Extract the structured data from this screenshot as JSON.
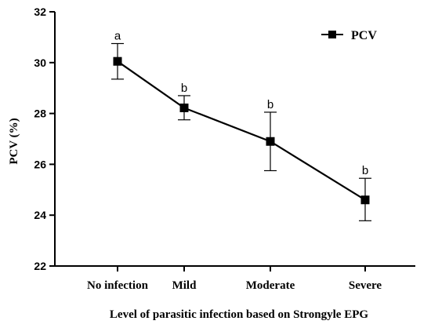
{
  "chart_data": {
    "type": "line",
    "xlabel": "Level of parasitic infection based on Strongyle EPG",
    "ylabel": "PCV (%)",
    "ylim": [
      22,
      32
    ],
    "yticks": [
      22,
      24,
      26,
      28,
      30,
      32
    ],
    "categories": [
      "No infection",
      "Mild",
      "Moderate",
      "Severe"
    ],
    "series": [
      {
        "name": "PCV",
        "values": [
          30.05,
          28.22,
          26.9,
          24.6
        ],
        "error_upper": [
          30.75,
          28.7,
          28.05,
          25.45
        ],
        "error_lower": [
          29.35,
          27.75,
          25.75,
          23.78
        ],
        "significance_labels": [
          "a",
          "b",
          "b",
          "b"
        ]
      }
    ],
    "legend_position": "top-right",
    "grid": false
  }
}
